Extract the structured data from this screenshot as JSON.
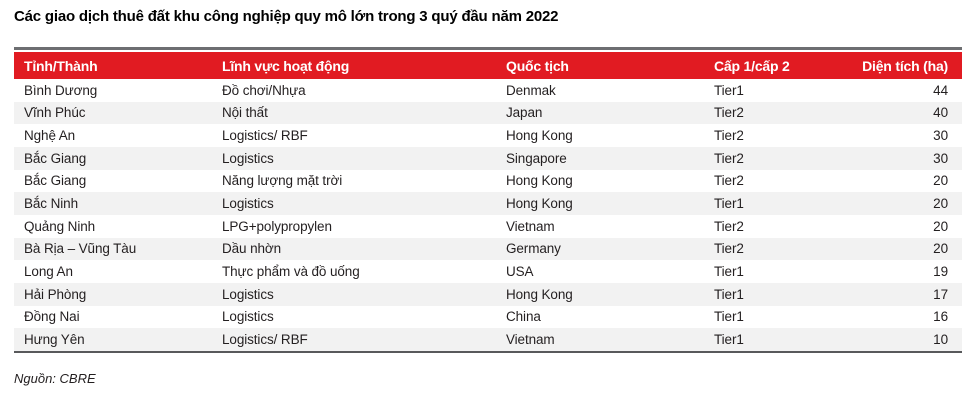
{
  "title": "Các giao dịch thuê đất khu công nghiệp quy mô lớn trong 3 quý đầu năm 2022",
  "source": "Nguồn: CBRE",
  "colors": {
    "header_bg": "#e11b22",
    "header_text": "#ffffff",
    "top_rule": "#6d6e71",
    "bottom_rule": "#58595b",
    "row_stripe": "#f2f2f2",
    "body_text": "#231f20"
  },
  "table": {
    "columns": [
      {
        "key": "province",
        "label": "Tỉnh/Thành"
      },
      {
        "key": "sector",
        "label": "Lĩnh vực hoạt động"
      },
      {
        "key": "nationality",
        "label": "Quốc tịch"
      },
      {
        "key": "tier",
        "label": "Cấp 1/cấp 2"
      },
      {
        "key": "area",
        "label": "Diện tích (ha)"
      }
    ],
    "rows": [
      {
        "province": "Bình Dương",
        "sector": "Đồ chơi/Nhựa",
        "nationality": "Denmak",
        "tier": "Tier1",
        "area": "44"
      },
      {
        "province": "Vĩnh Phúc",
        "sector": "Nội thất",
        "nationality": "Japan",
        "tier": "Tier2",
        "area": "40"
      },
      {
        "province": "Nghệ An",
        "sector": "Logistics/ RBF",
        "nationality": "Hong Kong",
        "tier": "Tier2",
        "area": "30"
      },
      {
        "province": "Bắc Giang",
        "sector": "Logistics",
        "nationality": "Singapore",
        "tier": "Tier2",
        "area": "30"
      },
      {
        "province": "Bắc Giang",
        "sector": "Năng lượng mặt trời",
        "nationality": "Hong Kong",
        "tier": "Tier2",
        "area": "20"
      },
      {
        "province": "Bắc Ninh",
        "sector": "Logistics",
        "nationality": "Hong Kong",
        "tier": "Tier1",
        "area": "20"
      },
      {
        "province": "Quảng Ninh",
        "sector": "LPG+polypropylen",
        "nationality": "Vietnam",
        "tier": "Tier2",
        "area": "20"
      },
      {
        "province": "Bà Rịa – Vũng Tàu",
        "sector": "Dầu nhờn",
        "nationality": "Germany",
        "tier": "Tier2",
        "area": "20"
      },
      {
        "province": "Long An",
        "sector": "Thực phẩm và đồ uống",
        "nationality": "USA",
        "tier": "Tier1",
        "area": "19"
      },
      {
        "province": "Hải Phòng",
        "sector": "Logistics",
        "nationality": "Hong Kong",
        "tier": "Tier1",
        "area": "17"
      },
      {
        "province": "Đồng Nai",
        "sector": "Logistics",
        "nationality": "China",
        "tier": "Tier1",
        "area": "16"
      },
      {
        "province": "Hưng Yên",
        "sector": "Logistics/ RBF",
        "nationality": "Vietnam",
        "tier": "Tier1",
        "area": "10"
      }
    ]
  }
}
